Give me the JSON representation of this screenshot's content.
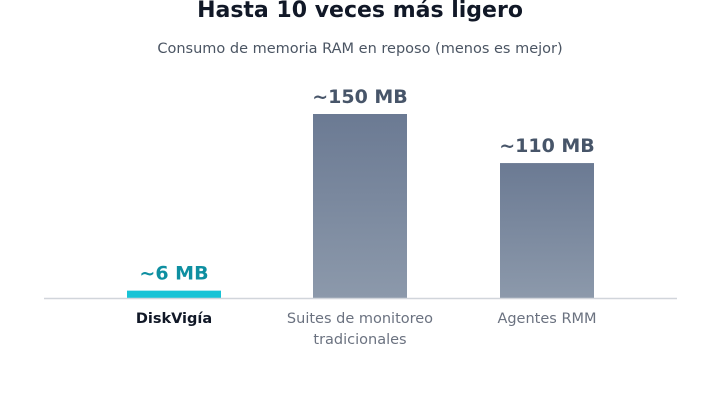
{
  "chart_data": {
    "type": "bar",
    "title": "Hasta 10 veces más ligero",
    "subtitle": "Consumo de memoria RAM en reposo (menos es mejor)",
    "categories": [
      "DiskVigía",
      "Suites de monitoreo\ntradicionales",
      "Agentes RMM"
    ],
    "values": [
      6,
      150,
      110
    ],
    "value_labels": [
      "~6 MB",
      "~150 MB",
      "~110 MB"
    ],
    "unit": "MB",
    "ylim": [
      0,
      150
    ],
    "grid": false,
    "legend": "none",
    "highlight_index": 0
  },
  "colors": {
    "highlight_bar": "#17c3d6",
    "highlight_label": "#0e8fa1",
    "bar_top": "#6b7a93",
    "bar_bottom": "#8c99ab",
    "value_label": "#475569",
    "highlight_category": "#111827",
    "category": "#6b7280",
    "baseline": "#d1d5db"
  }
}
